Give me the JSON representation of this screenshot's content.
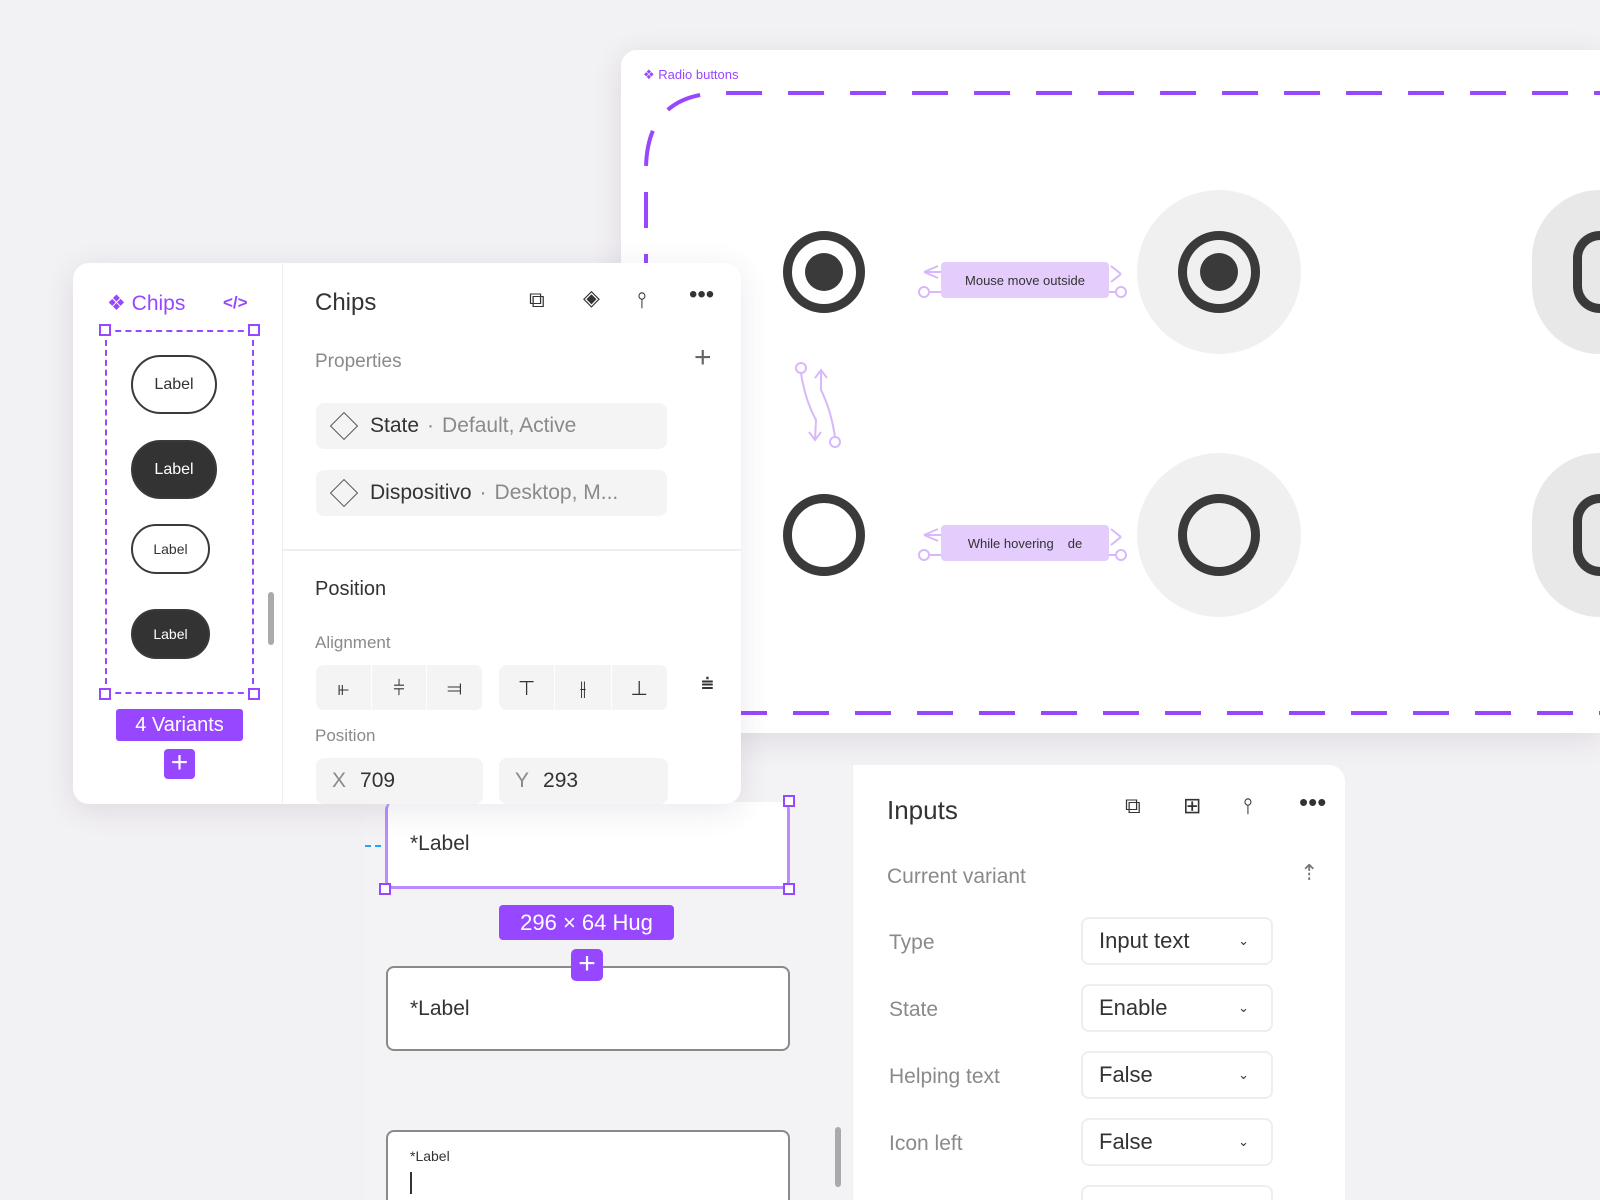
{
  "radio_frame": {
    "title": "Radio buttons",
    "triggers": [
      "Mouse move outside",
      "While hovering",
      "de"
    ]
  },
  "chips_panel": {
    "component_name": "Chips",
    "code_icon": "</>",
    "chip_labels": [
      "Label",
      "Label",
      "Label",
      "Label"
    ],
    "variants_badge": "4 Variants",
    "title": "Chips",
    "properties_label": "Properties",
    "properties": [
      {
        "name": "State",
        "values": "Default, Active"
      },
      {
        "name": "Dispositivo",
        "values": "Desktop, M..."
      }
    ],
    "separator": "·",
    "position_heading": "Position",
    "alignment_label": "Alignment",
    "position_label": "Position",
    "x_label": "X",
    "x_value": "709",
    "y_label": "Y",
    "y_value": "293"
  },
  "inputs_canvas": {
    "input_labels": [
      "*Label",
      "*Label",
      "*Label"
    ],
    "size_badge": "296 × 64 Hug"
  },
  "inputs_panel": {
    "title": "Inputs",
    "current_variant": "Current variant",
    "rows": [
      {
        "label": "Type",
        "value": "Input text"
      },
      {
        "label": "State",
        "value": "Enable"
      },
      {
        "label": "Helping text",
        "value": "False"
      },
      {
        "label": "Icon left",
        "value": "False"
      }
    ]
  },
  "colors": {
    "accent": "#9747ff",
    "trigger": "#e4ccfd",
    "radio": "#3a3a3a"
  }
}
